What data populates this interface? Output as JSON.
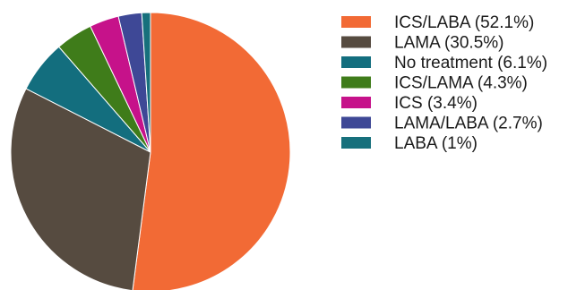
{
  "chart_data": {
    "type": "pie",
    "title": "",
    "legend_position": "right",
    "start_angle_deg": 0,
    "direction": "clockwise",
    "slices": [
      {
        "label": "ICS/LABA (52.1%)",
        "value": 52.1,
        "color": "#F26A35"
      },
      {
        "label": "LAMA (30.5%)",
        "value": 30.5,
        "color": "#564B40"
      },
      {
        "label": "No treatment (6.1%)",
        "value": 6.1,
        "color": "#136E7E"
      },
      {
        "label": "ICS/LAMA (4.3%)",
        "value": 4.3,
        "color": "#3F7C1A"
      },
      {
        "label": "ICS (3.4%)",
        "value": 3.4,
        "color": "#C6128A"
      },
      {
        "label": "LAMA/LABA (2.7%)",
        "value": 2.7,
        "color": "#3E4896"
      },
      {
        "label": "LABA (1%)",
        "value": 1.0,
        "color": "#17707C"
      }
    ]
  }
}
